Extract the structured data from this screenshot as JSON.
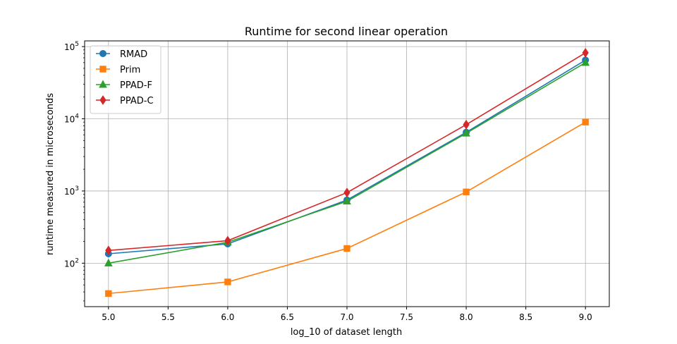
{
  "chart_data": {
    "type": "line",
    "title": "Runtime for second linear operation",
    "xlabel": "log_10 of dataset length",
    "ylabel": "runtime measured in microseconds",
    "yscale": "log",
    "xlim": [
      4.8,
      9.2
    ],
    "ylim": [
      25,
      120000
    ],
    "x_ticks": [
      "5.0",
      "5.5",
      "6.0",
      "6.5",
      "7.0",
      "7.5",
      "8.0",
      "8.5",
      "9.0"
    ],
    "y_ticks": [
      {
        "base": "10",
        "exp": "2"
      },
      {
        "base": "10",
        "exp": "3"
      },
      {
        "base": "10",
        "exp": "4"
      },
      {
        "base": "10",
        "exp": "5"
      }
    ],
    "grid": true,
    "legend_position": "top-left",
    "x": [
      5.0,
      6.0,
      7.0,
      8.0,
      9.0
    ],
    "series": [
      {
        "name": "RMAD",
        "color": "#1f77b4",
        "marker": "circle",
        "values": [
          135,
          185,
          750,
          6500,
          65000
        ]
      },
      {
        "name": "Prim",
        "color": "#ff7f0e",
        "marker": "square",
        "values": [
          38,
          55,
          160,
          970,
          9000
        ]
      },
      {
        "name": "PPAD-F",
        "color": "#2ca02c",
        "marker": "triangle",
        "values": [
          100,
          195,
          720,
          6300,
          60000
        ]
      },
      {
        "name": "PPAD-C",
        "color": "#d62728",
        "marker": "diamond",
        "values": [
          150,
          205,
          950,
          8300,
          82000
        ]
      }
    ]
  }
}
